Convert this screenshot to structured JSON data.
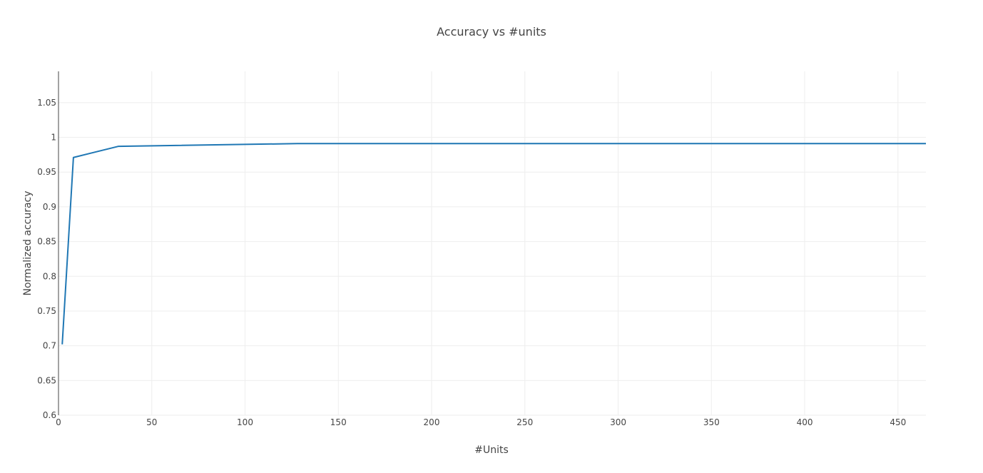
{
  "chart_data": {
    "type": "line",
    "title": "Accuracy vs #units",
    "xlabel": "#Units",
    "ylabel": "Normalized accuracy",
    "xlim": [
      0,
      465
    ],
    "ylim": [
      0.6,
      1.095
    ],
    "x_ticks": [
      0,
      50,
      100,
      150,
      200,
      250,
      300,
      350,
      400,
      450
    ],
    "x_tick_labels": [
      "0",
      "50",
      "100",
      "150",
      "200",
      "250",
      "300",
      "350",
      "400",
      "450"
    ],
    "y_ticks": [
      0.6,
      0.65,
      0.7,
      0.75,
      0.8,
      0.85,
      0.9,
      0.95,
      1,
      1.05
    ],
    "y_tick_labels": [
      "0.6",
      "0.65",
      "0.7",
      "0.75",
      "0.8",
      "0.85",
      "0.9",
      "0.95",
      "1",
      "1.05"
    ],
    "grid": true,
    "series": [
      {
        "color": "#1f77b4",
        "x": [
          2,
          8,
          32,
          128,
          512
        ],
        "y": [
          0.702,
          0.971,
          0.987,
          0.991,
          0.991
        ]
      }
    ]
  }
}
